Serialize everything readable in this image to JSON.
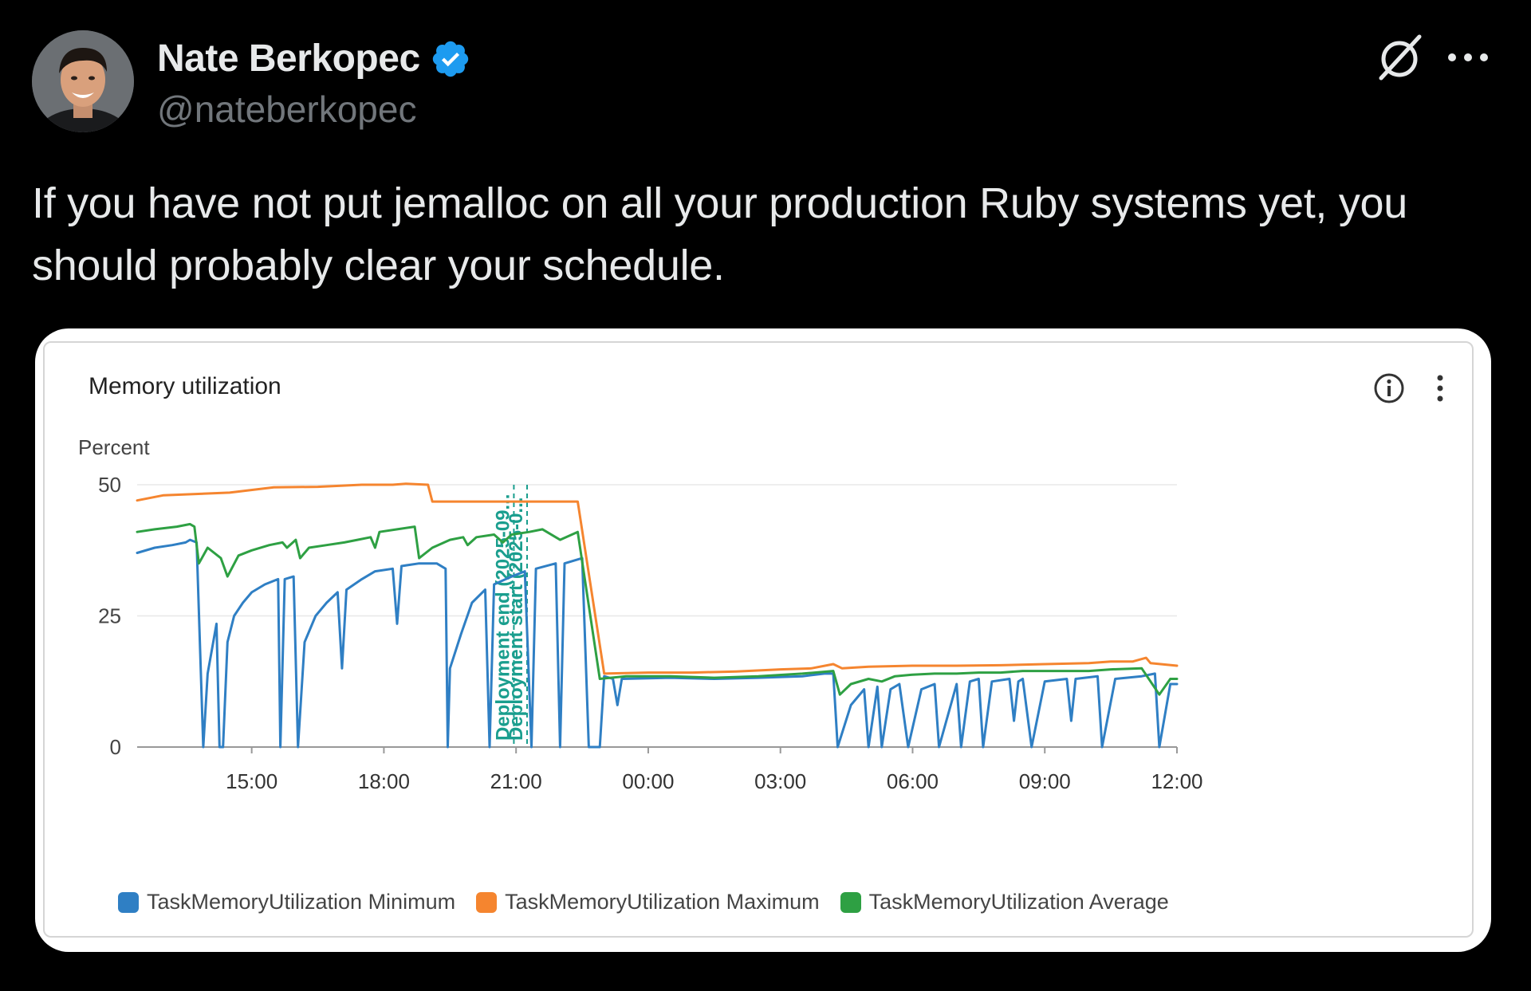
{
  "author": {
    "name": "Nate Berkopec",
    "handle": "@nateberkopec",
    "verified": true,
    "avatar_icon": "avatar-photo"
  },
  "icons": {
    "grok": "grok-icon",
    "more": "more-options-icon",
    "verified": "verified-badge-icon",
    "info": "info-icon",
    "kebab": "kebab-menu-icon"
  },
  "tweet": {
    "line1": "If you have not put jemalloc on all your production Ruby systems yet, you",
    "line2": "should probably clear your schedule."
  },
  "chart_data": {
    "type": "line",
    "title": "Memory utilization",
    "ylabel": "Percent",
    "ylim": [
      0,
      50
    ],
    "yticks": [
      0,
      25,
      50
    ],
    "xlim": [
      12.4,
      36
    ],
    "xticks": [
      {
        "value": 15,
        "label": "15:00"
      },
      {
        "value": 18,
        "label": "18:00"
      },
      {
        "value": 21,
        "label": "21:00"
      },
      {
        "value": 24,
        "label": "00:00"
      },
      {
        "value": 27,
        "label": "03:00"
      },
      {
        "value": 30,
        "label": "06:00"
      },
      {
        "value": 33,
        "label": "09:00"
      },
      {
        "value": 36,
        "label": "12:00"
      }
    ],
    "annotations": [
      {
        "x": 20.95,
        "label": "Deployment end (2025-09..."
      },
      {
        "x": 21.25,
        "label": "Deployment start (2025-0..."
      }
    ],
    "series": [
      {
        "name": "TaskMemoryUtilization Minimum",
        "color": "#2f7fc4",
        "points": [
          [
            12.4,
            37
          ],
          [
            12.8,
            38
          ],
          [
            13.2,
            38.5
          ],
          [
            13.5,
            39
          ],
          [
            13.6,
            39.5
          ],
          [
            13.75,
            39
          ],
          [
            13.9,
            0
          ],
          [
            14.0,
            14
          ],
          [
            14.2,
            23.5
          ],
          [
            14.27,
            0
          ],
          [
            14.35,
            0
          ],
          [
            14.45,
            20
          ],
          [
            14.6,
            25
          ],
          [
            14.8,
            27.5
          ],
          [
            15.0,
            29.5
          ],
          [
            15.3,
            31
          ],
          [
            15.6,
            32
          ],
          [
            15.65,
            0
          ],
          [
            15.75,
            32
          ],
          [
            15.95,
            32.5
          ],
          [
            16.05,
            0
          ],
          [
            16.2,
            20
          ],
          [
            16.45,
            25
          ],
          [
            16.7,
            27.5
          ],
          [
            16.95,
            29.5
          ],
          [
            17.05,
            15
          ],
          [
            17.15,
            30
          ],
          [
            17.5,
            32
          ],
          [
            17.8,
            33.5
          ],
          [
            18.2,
            34
          ],
          [
            18.3,
            23.5
          ],
          [
            18.4,
            34.5
          ],
          [
            18.8,
            35
          ],
          [
            19.2,
            35
          ],
          [
            19.4,
            34
          ],
          [
            19.45,
            0
          ],
          [
            19.5,
            15
          ],
          [
            19.75,
            21.5
          ],
          [
            20.0,
            27.5
          ],
          [
            20.3,
            30
          ],
          [
            20.4,
            0
          ],
          [
            20.5,
            31
          ],
          [
            20.9,
            32.5
          ],
          [
            21.2,
            33.5
          ],
          [
            21.35,
            0
          ],
          [
            21.45,
            34
          ],
          [
            21.9,
            35
          ],
          [
            22.0,
            0
          ],
          [
            22.1,
            35
          ],
          [
            22.5,
            36
          ],
          [
            22.65,
            0
          ],
          [
            22.9,
            0
          ],
          [
            23.0,
            13.5
          ],
          [
            23.2,
            13
          ],
          [
            23.3,
            8
          ],
          [
            23.4,
            13
          ],
          [
            24.5,
            13.2
          ],
          [
            25.5,
            13
          ],
          [
            26.5,
            13.2
          ],
          [
            27.5,
            13.5
          ],
          [
            28.0,
            14
          ],
          [
            28.2,
            14
          ],
          [
            28.3,
            0
          ],
          [
            28.6,
            8
          ],
          [
            28.9,
            11
          ],
          [
            29.0,
            0
          ],
          [
            29.2,
            11.5
          ],
          [
            29.3,
            0
          ],
          [
            29.5,
            11
          ],
          [
            29.7,
            12
          ],
          [
            29.9,
            0
          ],
          [
            30.2,
            11
          ],
          [
            30.5,
            12
          ],
          [
            30.6,
            0
          ],
          [
            31.0,
            12
          ],
          [
            31.1,
            0
          ],
          [
            31.3,
            12.5
          ],
          [
            31.5,
            13
          ],
          [
            31.6,
            0
          ],
          [
            31.8,
            12.5
          ],
          [
            32.2,
            13
          ],
          [
            32.3,
            5
          ],
          [
            32.4,
            12.5
          ],
          [
            32.5,
            13
          ],
          [
            32.7,
            0
          ],
          [
            33.0,
            12.5
          ],
          [
            33.5,
            13
          ],
          [
            33.6,
            5
          ],
          [
            33.7,
            13
          ],
          [
            34.2,
            13.5
          ],
          [
            34.3,
            0
          ],
          [
            34.6,
            13
          ],
          [
            35.2,
            13.5
          ],
          [
            35.5,
            14
          ],
          [
            35.6,
            0
          ],
          [
            35.85,
            12
          ],
          [
            36,
            12
          ]
        ]
      },
      {
        "name": "TaskMemoryUtilization Maximum",
        "color": "#f5852f",
        "points": [
          [
            12.4,
            47
          ],
          [
            13.0,
            48
          ],
          [
            14.5,
            48.5
          ],
          [
            15.5,
            49.5
          ],
          [
            16.5,
            49.6
          ],
          [
            17.5,
            50
          ],
          [
            18.2,
            50
          ],
          [
            18.5,
            50.2
          ],
          [
            19.0,
            50
          ],
          [
            19.1,
            46.8
          ],
          [
            20.0,
            46.8
          ],
          [
            21.0,
            46.8
          ],
          [
            22.4,
            46.8
          ],
          [
            23.0,
            14
          ],
          [
            24.0,
            14.2
          ],
          [
            25.0,
            14.2
          ],
          [
            26.0,
            14.4
          ],
          [
            27.0,
            14.8
          ],
          [
            27.7,
            15
          ],
          [
            28.2,
            15.8
          ],
          [
            28.4,
            15
          ],
          [
            29.0,
            15.3
          ],
          [
            30.0,
            15.5
          ],
          [
            31.0,
            15.5
          ],
          [
            32.0,
            15.6
          ],
          [
            33.0,
            15.8
          ],
          [
            34.0,
            16
          ],
          [
            34.5,
            16.3
          ],
          [
            35.0,
            16.3
          ],
          [
            35.3,
            17
          ],
          [
            35.4,
            16
          ],
          [
            36,
            15.5
          ]
        ]
      },
      {
        "name": "TaskMemoryUtilization Average",
        "color": "#2ea043",
        "points": [
          [
            12.4,
            41
          ],
          [
            12.8,
            41.5
          ],
          [
            13.3,
            42
          ],
          [
            13.6,
            42.5
          ],
          [
            13.7,
            42
          ],
          [
            13.8,
            35
          ],
          [
            14.0,
            38
          ],
          [
            14.3,
            36
          ],
          [
            14.45,
            32.5
          ],
          [
            14.7,
            36.5
          ],
          [
            15.0,
            37.5
          ],
          [
            15.4,
            38.5
          ],
          [
            15.7,
            39
          ],
          [
            15.8,
            38
          ],
          [
            16.0,
            39.5
          ],
          [
            16.1,
            36
          ],
          [
            16.3,
            38
          ],
          [
            16.7,
            38.5
          ],
          [
            17.1,
            39
          ],
          [
            17.4,
            39.5
          ],
          [
            17.7,
            40
          ],
          [
            17.8,
            38
          ],
          [
            17.9,
            41
          ],
          [
            18.3,
            41.5
          ],
          [
            18.7,
            42
          ],
          [
            18.8,
            36
          ],
          [
            19.1,
            38
          ],
          [
            19.5,
            39.5
          ],
          [
            19.8,
            40
          ],
          [
            19.9,
            38.5
          ],
          [
            20.1,
            40
          ],
          [
            20.5,
            40.5
          ],
          [
            20.7,
            39
          ],
          [
            20.9,
            40.5
          ],
          [
            21.3,
            41
          ],
          [
            21.6,
            41.5
          ],
          [
            22.0,
            39.5
          ],
          [
            22.4,
            41
          ],
          [
            22.9,
            13
          ],
          [
            23.5,
            13.5
          ],
          [
            24.5,
            13.5
          ],
          [
            25.5,
            13.2
          ],
          [
            26.5,
            13.5
          ],
          [
            27.5,
            14
          ],
          [
            28.2,
            14.5
          ],
          [
            28.35,
            10
          ],
          [
            28.6,
            12
          ],
          [
            29.0,
            13
          ],
          [
            29.3,
            12.5
          ],
          [
            29.6,
            13.5
          ],
          [
            30.0,
            13.8
          ],
          [
            30.5,
            14
          ],
          [
            31.0,
            14
          ],
          [
            31.5,
            14.2
          ],
          [
            32.0,
            14.2
          ],
          [
            32.5,
            14.5
          ],
          [
            33.0,
            14.5
          ],
          [
            33.5,
            14.5
          ],
          [
            34.0,
            14.5
          ],
          [
            34.5,
            14.8
          ],
          [
            35.2,
            15
          ],
          [
            35.6,
            10
          ],
          [
            35.85,
            13
          ],
          [
            36,
            13
          ]
        ]
      }
    ]
  }
}
